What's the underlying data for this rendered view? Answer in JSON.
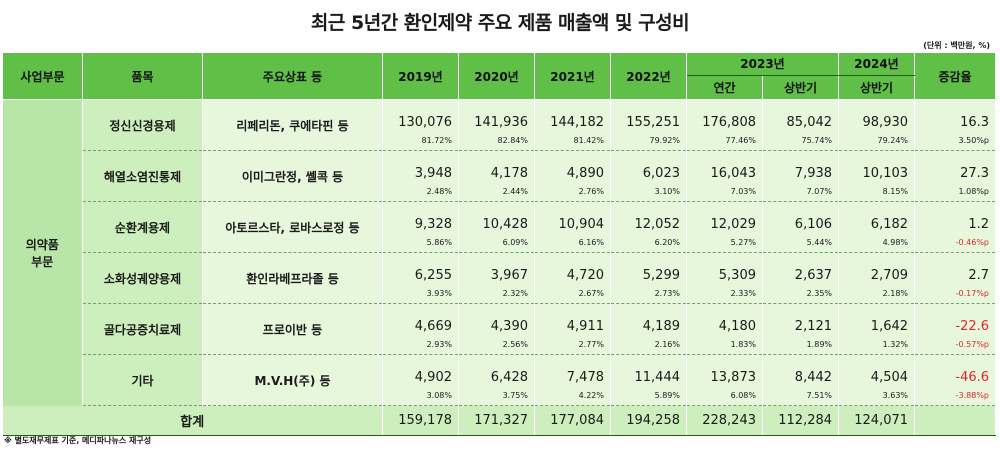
{
  "title": "최근 5년간 환인제약 주요 제품 매출액 및 구성비",
  "unit": "(단위 : 백만원, %)",
  "headers": {
    "segment": "사업부문",
    "item": "품목",
    "brand": "주요상표 등",
    "y2019": "2019년",
    "y2020": "2020년",
    "y2021": "2021년",
    "y2022": "2022년",
    "y2023": "2023년",
    "y2023_annual": "연간",
    "y2023_half": "상반기",
    "y2024": "2024년",
    "y2024_half": "상반기",
    "change": "증감율"
  },
  "segment_label": "의약품\n부문",
  "rows": [
    {
      "category": "정신신경용제",
      "brand": "리페리돈, 쿠에타핀 등",
      "values": [
        "130,076",
        "141,936",
        "144,182",
        "155,251",
        "176,808",
        "85,042",
        "98,930"
      ],
      "shares": [
        "81.72%",
        "82.84%",
        "81.42%",
        "79.92%",
        "77.46%",
        "75.74%",
        "79.24%"
      ],
      "change": "16.3",
      "change_share": "3.50%p"
    },
    {
      "category": "해열소염진통제",
      "brand": "이미그란정, 쎌콕 등",
      "values": [
        "3,948",
        "4,178",
        "4,890",
        "6,023",
        "16,043",
        "7,938",
        "10,103"
      ],
      "shares": [
        "2.48%",
        "2.44%",
        "2.76%",
        "3.10%",
        "7.03%",
        "7.07%",
        "8.15%"
      ],
      "change": "27.3",
      "change_share": "1.08%p"
    },
    {
      "category": "순환계용제",
      "brand": "아토르스타, 로바스로정 등",
      "values": [
        "9,328",
        "10,428",
        "10,904",
        "12,052",
        "12,029",
        "6,106",
        "6,182"
      ],
      "shares": [
        "5.86%",
        "6.09%",
        "6.16%",
        "6.20%",
        "5.27%",
        "5.44%",
        "4.98%"
      ],
      "change": "1.2",
      "change_share": "-0.46%p"
    },
    {
      "category": "소화성궤양용제",
      "brand": "환인라베프라졸 등",
      "values": [
        "6,255",
        "3,967",
        "4,720",
        "5,299",
        "5,309",
        "2,637",
        "2,709"
      ],
      "shares": [
        "3.93%",
        "2.32%",
        "2.67%",
        "2.73%",
        "2.33%",
        "2.35%",
        "2.18%"
      ],
      "change": "2.7",
      "change_share": "-0.17%p"
    },
    {
      "category": "골다공증치료제",
      "brand": "프로이반 등",
      "values": [
        "4,669",
        "4,390",
        "4,911",
        "4,189",
        "4,180",
        "2,121",
        "1,642"
      ],
      "shares": [
        "2.93%",
        "2.56%",
        "2.77%",
        "2.16%",
        "1.83%",
        "1.89%",
        "1.32%"
      ],
      "change": "-22.6",
      "change_share": "-0.57%p"
    },
    {
      "category": "기타",
      "brand": "M.V.H(주) 등",
      "values": [
        "4,902",
        "6,428",
        "7,478",
        "11,444",
        "13,873",
        "8,442",
        "4,504"
      ],
      "shares": [
        "3.08%",
        "3.75%",
        "4.22%",
        "5.89%",
        "6.08%",
        "7.51%",
        "3.63%"
      ],
      "change": "-46.6",
      "change_share": "-3.88%p"
    }
  ],
  "total": {
    "label": "합계",
    "values": [
      "159,178",
      "171,327",
      "177,084",
      "194,258",
      "228,243",
      "112,284",
      "124,071"
    ]
  },
  "footer": "※ 별도재무제표 기준, 메디파나뉴스 재구성",
  "colors": {
    "header_green": "#5fbf46",
    "row_green": "#e6f7dc",
    "category_green": "#ccefbd",
    "negative_red": "#e0262a"
  }
}
